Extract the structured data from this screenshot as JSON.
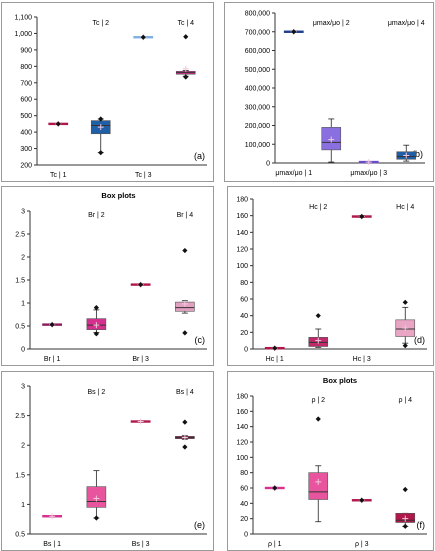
{
  "chart_data": [
    {
      "type": "box",
      "panel_label": "(a)",
      "title": "",
      "ylim": [
        200,
        1100
      ],
      "yticks": [
        200,
        300,
        400,
        500,
        600,
        700,
        800,
        900,
        1000,
        1100
      ],
      "ytick_labels": [
        "200",
        "300",
        "400",
        "500",
        "600",
        "700",
        "800",
        "900",
        "1,000",
        "1,100"
      ],
      "groups": [
        {
          "label": "Tc | 1",
          "label_pos": "bottom",
          "color": "#b0174a",
          "min": 448,
          "q1": 448,
          "median": 450,
          "q3": 452,
          "max": 452,
          "mean": 450,
          "outliers": [
            450
          ]
        },
        {
          "label": "Tc | 2",
          "label_pos": "top",
          "color": "#1f5fa8",
          "min": 275,
          "q1": 390,
          "median": 440,
          "q3": 470,
          "max": 480,
          "mean": 430,
          "outliers": [
            480,
            275
          ]
        },
        {
          "label": "Tc | 3",
          "label_pos": "bottom",
          "color": "#7fb0e0",
          "min": 975,
          "q1": 975,
          "median": 977,
          "q3": 979,
          "max": 979,
          "mean": 977,
          "outliers": [
            977
          ]
        },
        {
          "label": "Tc | 4",
          "label_pos": "top",
          "color": "#d6308e",
          "min": 740,
          "q1": 752,
          "median": 762,
          "q3": 770,
          "max": 775,
          "mean": 785,
          "outliers": [
            980,
            735
          ]
        }
      ]
    },
    {
      "type": "box",
      "panel_label": "(b)",
      "title": "",
      "ylim": [
        0,
        800000
      ],
      "yticks": [
        0,
        100000,
        200000,
        300000,
        400000,
        500000,
        600000,
        700000,
        800000
      ],
      "ytick_labels": [
        "0",
        "100,000",
        "200,000",
        "300,000",
        "400,000",
        "500,000",
        "600,000",
        "700,000",
        "800,000"
      ],
      "groups": [
        {
          "label": "μmax/μo | 1",
          "label_pos": "bottom",
          "color": "#1f3f8a",
          "min": 698000,
          "q1": 698000,
          "median": 700000,
          "q3": 702000,
          "max": 702000,
          "mean": 700000,
          "outliers": [
            700000
          ]
        },
        {
          "label": "μmax/μo | 2",
          "label_pos": "top",
          "color": "#8a6fe0",
          "min": 5000,
          "q1": 70000,
          "median": 110000,
          "q3": 190000,
          "max": 235000,
          "mean": 125000,
          "outliers": []
        },
        {
          "label": "μmax/μo | 3",
          "label_pos": "bottom",
          "color": "#6a4cc8",
          "min": 4000,
          "q1": 4000,
          "median": 5000,
          "q3": 6000,
          "max": 6000,
          "mean": 5000,
          "outliers": []
        },
        {
          "label": "μmax/μo | 4",
          "label_pos": "top",
          "color": "#1f5fa8",
          "min": 10000,
          "q1": 20000,
          "median": 35000,
          "q3": 60000,
          "max": 95000,
          "mean": 40000,
          "outliers": []
        }
      ]
    },
    {
      "type": "box",
      "panel_label": "(c)",
      "title": "Box plots",
      "ylim": [
        0,
        3
      ],
      "yticks": [
        0,
        0.5,
        1,
        1.5,
        2,
        2.5,
        3
      ],
      "ytick_labels": [
        "0",
        "0.5",
        "1",
        "1.5",
        "2",
        "2.5",
        "3"
      ],
      "groups": [
        {
          "label": "Br | 1",
          "label_pos": "bottom",
          "color": "#8b1a5a",
          "min": 0.52,
          "q1": 0.52,
          "median": 0.53,
          "q3": 0.54,
          "max": 0.54,
          "mean": 0.53,
          "outliers": [
            0.53
          ]
        },
        {
          "label": "Br | 2",
          "label_pos": "top",
          "color": "#d6308e",
          "min": 0.36,
          "q1": 0.42,
          "median": 0.52,
          "q3": 0.66,
          "max": 0.85,
          "mean": 0.52,
          "outliers": [
            0.9,
            0.33
          ]
        },
        {
          "label": "Br | 3",
          "label_pos": "bottom",
          "color": "#b0174a",
          "min": 1.39,
          "q1": 1.39,
          "median": 1.4,
          "q3": 1.41,
          "max": 1.41,
          "mean": 1.4,
          "outliers": [
            1.4
          ]
        },
        {
          "label": "Br | 4",
          "label_pos": "top",
          "color": "#e2a0c0",
          "min": 0.78,
          "q1": 0.82,
          "median": 0.9,
          "q3": 1.02,
          "max": 1.05,
          "mean": 0.98,
          "outliers": [
            2.14,
            0.35
          ]
        }
      ]
    },
    {
      "type": "box",
      "panel_label": "(d)",
      "title": "",
      "ylim": [
        0,
        180
      ],
      "yticks": [
        0,
        20,
        40,
        60,
        80,
        100,
        120,
        140,
        160,
        180
      ],
      "ytick_labels": [
        "0",
        "20",
        "40",
        "60",
        "80",
        "100",
        "120",
        "140",
        "160",
        "180"
      ],
      "groups": [
        {
          "label": "Hc | 1",
          "label_pos": "bottom",
          "color": "#b0174a",
          "min": 0,
          "q1": 0,
          "median": 1,
          "q3": 2,
          "max": 2,
          "mean": 1,
          "outliers": [
            1
          ]
        },
        {
          "label": "Hc | 2",
          "label_pos": "top",
          "color": "#c02a6a",
          "min": 2,
          "q1": 3,
          "median": 8,
          "q3": 14,
          "max": 24,
          "mean": 10,
          "outliers": [
            40
          ]
        },
        {
          "label": "Hc | 3",
          "label_pos": "bottom",
          "color": "#b0174a",
          "min": 158,
          "q1": 158,
          "median": 159,
          "q3": 160,
          "max": 160,
          "mean": 159,
          "outliers": [
            159
          ]
        },
        {
          "label": "Hc | 4",
          "label_pos": "top",
          "color": "#e8a6c4",
          "min": 7,
          "q1": 15,
          "median": 24,
          "q3": 35,
          "max": 50,
          "mean": 25,
          "outliers": [
            56,
            4
          ]
        }
      ]
    },
    {
      "type": "box",
      "panel_label": "(e)",
      "title": "",
      "ylim": [
        0.5,
        3
      ],
      "yticks": [
        0.5,
        1,
        1.5,
        2,
        2.5,
        3
      ],
      "ytick_labels": [
        "0.5",
        "1",
        "1.5",
        "2",
        "2.5",
        "3"
      ],
      "groups": [
        {
          "label": "Bs | 1",
          "label_pos": "bottom",
          "color": "#d6308e",
          "min": 0.79,
          "q1": 0.79,
          "median": 0.8,
          "q3": 0.81,
          "max": 0.81,
          "mean": 0.8,
          "outliers": []
        },
        {
          "label": "Bs | 2",
          "label_pos": "top",
          "color": "#e8559e",
          "min": 0.77,
          "q1": 0.95,
          "median": 1.05,
          "q3": 1.3,
          "max": 1.57,
          "mean": 1.1,
          "outliers": [
            0.77
          ]
        },
        {
          "label": "Bs | 3",
          "label_pos": "bottom",
          "color": "#b0174a",
          "min": 2.39,
          "q1": 2.39,
          "median": 2.4,
          "q3": 2.41,
          "max": 2.41,
          "mean": 2.4,
          "outliers": []
        },
        {
          "label": "Bs | 4",
          "label_pos": "top",
          "color": "#b0174a",
          "min": 2.1,
          "q1": 2.11,
          "median": 2.13,
          "q3": 2.15,
          "max": 2.16,
          "mean": 2.13,
          "outliers": [
            2.39,
            1.97
          ]
        }
      ]
    },
    {
      "type": "box",
      "panel_label": "(f)",
      "title": "Box plots",
      "ylim": [
        0,
        180
      ],
      "yticks": [
        0,
        20,
        40,
        60,
        80,
        100,
        120,
        140,
        160,
        180
      ],
      "ytick_labels": [
        "0",
        "20",
        "40",
        "60",
        "80",
        "100",
        "120",
        "140",
        "160",
        "180"
      ],
      "groups": [
        {
          "label": "ρ | 1",
          "label_pos": "bottom",
          "color": "#d6308e",
          "min": 59,
          "q1": 59,
          "median": 60,
          "q3": 61,
          "max": 61,
          "mean": 60,
          "outliers": [
            60
          ]
        },
        {
          "label": "ρ | 2",
          "label_pos": "top",
          "color": "#e8559e",
          "min": 16,
          "q1": 45,
          "median": 55,
          "q3": 80,
          "max": 89,
          "mean": 68,
          "outliers": [
            150
          ]
        },
        {
          "label": "ρ | 3",
          "label_pos": "bottom",
          "color": "#b0174a",
          "min": 43,
          "q1": 43,
          "median": 44,
          "q3": 45,
          "max": 45,
          "mean": 44,
          "outliers": [
            44
          ]
        },
        {
          "label": "ρ | 4",
          "label_pos": "top",
          "color": "#b0174a",
          "min": 10,
          "q1": 15,
          "median": 18,
          "q3": 27,
          "max": 27,
          "mean": 20,
          "outliers": [
            58,
            10
          ]
        }
      ]
    }
  ]
}
